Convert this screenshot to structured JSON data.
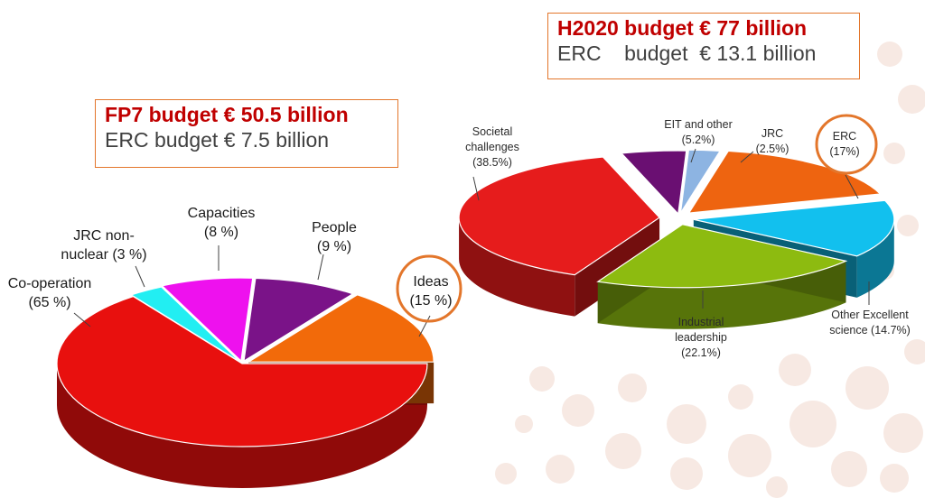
{
  "fp7_box": {
    "line1": "FP7 budget € 50.5 billion",
    "line2": "ERC budget € 7.5 billion"
  },
  "h2020_box": {
    "line1": "H2020 budget € 77 billion",
    "line2": "ERC    budget  € 13.1 billion"
  },
  "colors": {
    "accent": "#e3762b",
    "title_red": "#c00000",
    "dot_bg": "#f7e9e3"
  },
  "chart_data": [
    {
      "type": "pie",
      "title": "FP7 budget € 50.5 billion",
      "highlight": "Ideas",
      "slices": [
        {
          "name": "Co-operation",
          "label_lines": [
            "Co-operation",
            "(65 %)"
          ],
          "value": 65,
          "color": "#e8100e"
        },
        {
          "name": "JRC non-nuclear",
          "label_lines": [
            "JRC non-",
            "nuclear (3 %)"
          ],
          "value": 3,
          "color": "#22eef2"
        },
        {
          "name": "Capacities",
          "label_lines": [
            "Capacities",
            "(8 %)"
          ],
          "value": 8,
          "color": "#ee11ee"
        },
        {
          "name": "People",
          "label_lines": [
            "People",
            "(9 %)"
          ],
          "value": 9,
          "color": "#7a1388"
        },
        {
          "name": "Ideas",
          "label_lines": [
            "Ideas",
            "(15 %)"
          ],
          "value": 15,
          "color": "#f26a0a"
        }
      ]
    },
    {
      "type": "pie",
      "title": "H2020 budget € 77 billion",
      "highlight": "ERC",
      "slices": [
        {
          "name": "Societal challenges",
          "label_lines": [
            "Societal",
            "challenges",
            "(38.5%)"
          ],
          "value": 38.5,
          "color": "#e61c1c"
        },
        {
          "name": "EIT and other",
          "label_lines": [
            "EIT and other",
            "(5.2%)"
          ],
          "value": 5.2,
          "color": "#6a0f72"
        },
        {
          "name": "JRC",
          "label_lines": [
            "JRC",
            "(2.5%)"
          ],
          "value": 2.5,
          "color": "#8db4e2"
        },
        {
          "name": "ERC",
          "label_lines": [
            "ERC",
            "(17%)"
          ],
          "value": 17,
          "color": "#ee6410"
        },
        {
          "name": "Other Excellent science",
          "label_lines": [
            "Other Excellent",
            "science (14.7%)"
          ],
          "value": 14.7,
          "color": "#12c0ee"
        },
        {
          "name": "Industrial leadership",
          "label_lines": [
            "Industrial",
            "leadership",
            "(22.1%)"
          ],
          "value": 22.1,
          "color": "#8dbb10"
        }
      ]
    }
  ]
}
